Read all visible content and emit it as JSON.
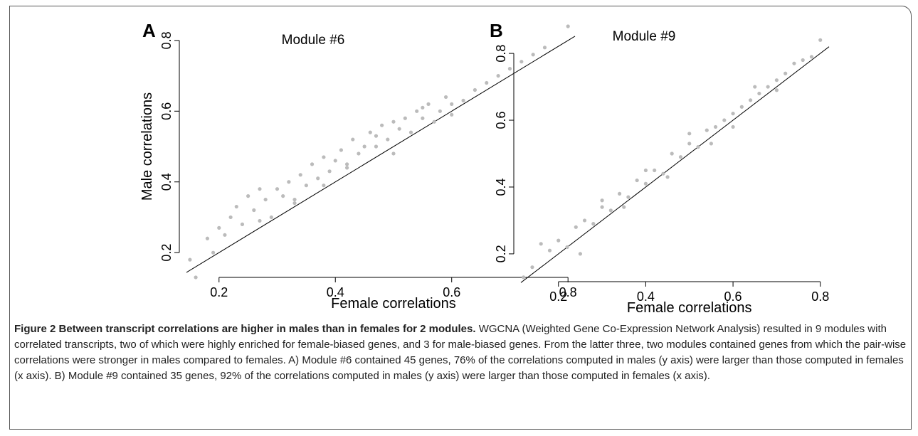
{
  "chart_data": [
    {
      "type": "scatter",
      "panel_label": "A",
      "title": "Module #6",
      "x_label": "Female correlations",
      "y_label": "Male correlations",
      "color": "#bbbbbb",
      "xlim": [
        0.144,
        0.812
      ],
      "ylim": [
        0.14,
        0.844
      ],
      "xticks": [
        0.2,
        0.4,
        0.6,
        0.8
      ],
      "yticks": [
        0.2,
        0.4,
        0.6,
        0.8
      ],
      "x": [
        0.15,
        0.16,
        0.18,
        0.19,
        0.2,
        0.21,
        0.22,
        0.23,
        0.24,
        0.25,
        0.26,
        0.27,
        0.28,
        0.29,
        0.3,
        0.31,
        0.32,
        0.33,
        0.34,
        0.35,
        0.36,
        0.37,
        0.38,
        0.39,
        0.4,
        0.41,
        0.42,
        0.43,
        0.44,
        0.45,
        0.46,
        0.47,
        0.48,
        0.49,
        0.5,
        0.51,
        0.52,
        0.53,
        0.54,
        0.55,
        0.56,
        0.57,
        0.58,
        0.59,
        0.6,
        0.62,
        0.64,
        0.66,
        0.68,
        0.7,
        0.72,
        0.74,
        0.76,
        0.8,
        0.27,
        0.33,
        0.38,
        0.42,
        0.47,
        0.5,
        0.55,
        0.6
      ],
      "values": [
        0.18,
        0.13,
        0.24,
        0.2,
        0.27,
        0.25,
        0.3,
        0.33,
        0.28,
        0.36,
        0.32,
        0.38,
        0.35,
        0.3,
        0.38,
        0.36,
        0.4,
        0.35,
        0.42,
        0.39,
        0.45,
        0.41,
        0.47,
        0.43,
        0.46,
        0.49,
        0.44,
        0.52,
        0.48,
        0.5,
        0.54,
        0.5,
        0.56,
        0.52,
        0.57,
        0.55,
        0.58,
        0.54,
        0.6,
        0.58,
        0.62,
        0.57,
        0.6,
        0.64,
        0.62,
        0.63,
        0.66,
        0.68,
        0.7,
        0.72,
        0.74,
        0.76,
        0.78,
        0.84,
        0.29,
        0.34,
        0.39,
        0.45,
        0.53,
        0.48,
        0.61,
        0.59
      ]
    },
    {
      "type": "scatter",
      "panel_label": "B",
      "title": "Module #9",
      "x_label": "Female correlations",
      "color": "#bbbbbb",
      "xlim": [
        0.114,
        0.82
      ],
      "ylim": [
        0.104,
        0.896
      ],
      "xticks": [
        0.2,
        0.4,
        0.6,
        0.8
      ],
      "yticks": [
        0.2,
        0.4,
        0.6,
        0.8
      ],
      "x": [
        0.12,
        0.14,
        0.16,
        0.18,
        0.2,
        0.22,
        0.24,
        0.26,
        0.28,
        0.3,
        0.32,
        0.34,
        0.36,
        0.38,
        0.4,
        0.42,
        0.44,
        0.46,
        0.48,
        0.5,
        0.52,
        0.54,
        0.56,
        0.58,
        0.6,
        0.62,
        0.64,
        0.66,
        0.68,
        0.7,
        0.72,
        0.74,
        0.76,
        0.78,
        0.8,
        0.25,
        0.3,
        0.35,
        0.4,
        0.45,
        0.5,
        0.55,
        0.6,
        0.65,
        0.7
      ],
      "values": [
        0.13,
        0.16,
        0.23,
        0.21,
        0.24,
        0.22,
        0.28,
        0.3,
        0.29,
        0.34,
        0.33,
        0.38,
        0.37,
        0.42,
        0.41,
        0.45,
        0.44,
        0.5,
        0.49,
        0.53,
        0.52,
        0.57,
        0.58,
        0.6,
        0.62,
        0.64,
        0.66,
        0.68,
        0.7,
        0.72,
        0.74,
        0.77,
        0.78,
        0.79,
        0.84,
        0.2,
        0.36,
        0.34,
        0.45,
        0.43,
        0.56,
        0.53,
        0.58,
        0.7,
        0.69
      ]
    }
  ],
  "caption": {
    "title": "Figure 2 Between transcript correlations are higher in males than in females for 2 modules.",
    "text": "WGCNA (Weighted Gene Co-Expression Network Analysis) resulted in 9 modules with correlated transcripts, two of which were highly enriched for female-biased genes, and 3 for male-biased genes. From the latter three, two modules contained genes from which the pair-wise correlations were stronger in males compared to females. A) Module #6 contained 45 genes, 76% of the correlations computed in males (y axis) were larger than those computed in females (x axis). B) Module #9 contained 35 genes, 92% of the correlations computed in males (y axis) were larger than those computed in females (x axis)."
  }
}
